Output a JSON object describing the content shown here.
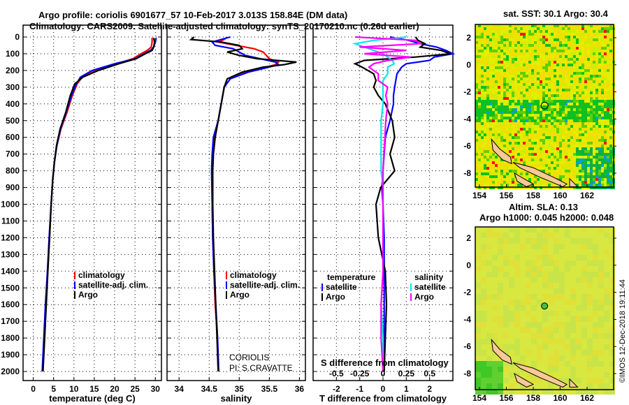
{
  "title_line1": "Argo profile: coriolis 6901677_57 10-Feb-2017 3.013S 158.84E (DM data)",
  "title_line2": "Climatology: CARS2009. Satellite-adjusted climatology: synTS_20170210.nc (0.26d earlier)",
  "credit": "CORIOLIS",
  "pi": "PI: S.CRAVATTE",
  "stamp": "©IMOS 12-Dec-2018 19:11:44",
  "colors": {
    "argo": "#000000",
    "clim": "#ff0000",
    "sat": "#0000ff",
    "sal_sat": "#00e8e8",
    "sal_argo": "#ff00ff"
  },
  "chart_data": [
    {
      "type": "line",
      "id": "temperature",
      "xlabel": "temperature (deg C)",
      "xticks": [
        0,
        5,
        10,
        15,
        20,
        25,
        30
      ],
      "xlim": [
        -2.5,
        31.5
      ],
      "ylim": [
        -75,
        2060
      ],
      "yticks": [
        0,
        100,
        200,
        300,
        400,
        500,
        600,
        700,
        800,
        900,
        1000,
        1100,
        1200,
        1300,
        1400,
        1500,
        1600,
        1700,
        1800,
        1900,
        2000
      ],
      "legend": [
        "climatology",
        "satellite-adj. clim.",
        "Argo"
      ],
      "depth": [
        5,
        30,
        60,
        80,
        100,
        130,
        160,
        200,
        240,
        280,
        350,
        450,
        550,
        650,
        750,
        850,
        1000,
        1200,
        1400,
        1600,
        1800,
        2000
      ],
      "series": [
        {
          "name": "climatology",
          "color": "clim",
          "values": [
            29.2,
            29.2,
            29.0,
            28.0,
            26.5,
            24.5,
            20.5,
            15.5,
            12.0,
            10.8,
            9.6,
            8.3,
            6.8,
            5.8,
            5.2,
            4.8,
            4.4,
            4.0,
            3.5,
            3.1,
            2.7,
            2.3
          ]
        },
        {
          "name": "satellite-adj. clim.",
          "color": "sat",
          "values": [
            30.2,
            30.0,
            29.6,
            28.8,
            27.3,
            25.0,
            20.0,
            14.5,
            11.6,
            10.6,
            9.4,
            8.1,
            6.7,
            5.8,
            5.2,
            4.8,
            4.4,
            3.9,
            3.5,
            3.0,
            2.6,
            2.2
          ]
        },
        {
          "name": "Argo",
          "color": "argo",
          "values": [
            29.6,
            29.8,
            29.6,
            29.2,
            27.5,
            25.3,
            21.0,
            16.0,
            12.2,
            10.2,
            9.1,
            8.0,
            6.6,
            5.7,
            5.2,
            4.8,
            4.4,
            4.0,
            3.6,
            3.2,
            2.8,
            2.4
          ]
        }
      ]
    },
    {
      "type": "line",
      "id": "salinity",
      "xlabel": "salinity",
      "xticks": [
        "34",
        "34.5",
        "35",
        "35.5",
        "36"
      ],
      "xlim": [
        33.8,
        36.1
      ],
      "legend": [
        "climatology",
        "satellite-adj. clim.",
        "Argo"
      ],
      "depth": [
        0,
        15,
        30,
        50,
        70,
        90,
        110,
        130,
        150,
        165,
        180,
        210,
        250,
        300,
        400,
        500,
        600,
        700,
        800,
        1000,
        1200,
        1400,
        1600,
        1800,
        2000
      ],
      "series": [
        {
          "name": "climatology",
          "color": "clim",
          "values": [
            34.8,
            34.75,
            34.65,
            34.95,
            35.25,
            35.4,
            35.45,
            35.5,
            35.65,
            35.6,
            35.45,
            35.1,
            34.85,
            34.75,
            34.7,
            34.65,
            34.58,
            34.56,
            34.55,
            34.55,
            34.56,
            34.58,
            34.6,
            34.64,
            34.65
          ]
        },
        {
          "name": "satellite-adj. clim.",
          "color": "sat",
          "values": [
            34.85,
            34.7,
            34.55,
            34.6,
            34.9,
            35.0,
            35.1,
            35.35,
            35.6,
            35.65,
            35.5,
            35.15,
            34.85,
            34.75,
            34.7,
            34.65,
            34.57,
            34.55,
            34.54,
            34.55,
            34.56,
            34.58,
            34.61,
            34.64,
            34.66
          ]
        },
        {
          "name": "Argo",
          "color": "argo",
          "values": [
            34.25,
            34.2,
            34.7,
            35.0,
            35.05,
            34.8,
            35.0,
            35.3,
            35.95,
            35.75,
            35.4,
            35.05,
            34.8,
            34.75,
            34.7,
            34.65,
            34.6,
            34.57,
            34.56,
            34.56,
            34.57,
            34.59,
            34.61,
            34.63,
            34.65
          ]
        }
      ]
    },
    {
      "type": "line",
      "id": "differences",
      "xlabel": "T difference from climatology",
      "xticks": [
        "-2",
        "-1",
        "0",
        "1",
        "2"
      ],
      "xlim": [
        -3.0,
        3.0
      ],
      "s_axis_label": "S difference from climatology",
      "s_ticks": [
        "-0.5",
        "-0.25",
        "0",
        "0.25",
        "0.5"
      ],
      "s_lim": [
        -0.75,
        0.75
      ],
      "legend": {
        "temperature_title": "temperature",
        "temperature_items": [
          "satellite",
          "Argo"
        ],
        "salinity_title": "salinity",
        "salinity_items": [
          "satellite",
          "Argo"
        ]
      },
      "depth": [
        0,
        20,
        40,
        60,
        80,
        100,
        120,
        140,
        160,
        180,
        220,
        260,
        300,
        350,
        400,
        500,
        600,
        700,
        800,
        900,
        1000,
        1200,
        1400,
        1600,
        1800,
        2000
      ],
      "series": [
        {
          "name": "T satellite",
          "axis": "T",
          "color": "sat",
          "values": [
            0.3,
            1.1,
            1.6,
            2.3,
            2.7,
            3.0,
            2.2,
            2.0,
            1.0,
            0.8,
            0.6,
            0.55,
            0.5,
            0.45,
            0.45,
            0.3,
            0.1,
            0.05,
            0.0,
            -0.05,
            0.0,
            0.05,
            0.05,
            0.05,
            0.05,
            0.05
          ]
        },
        {
          "name": "T Argo",
          "axis": "T",
          "color": "argo",
          "values": [
            1.4,
            1.5,
            1.8,
            1.6,
            2.5,
            2.9,
            1.4,
            -0.8,
            -1.2,
            -0.9,
            -0.4,
            -0.3,
            -0.4,
            -0.2,
            0.1,
            0.4,
            0.5,
            0.3,
            0.5,
            -0.1,
            -0.3,
            -0.2,
            0.1,
            0.15,
            0.1,
            0.05
          ]
        },
        {
          "name": "S satellite",
          "axis": "S",
          "color": "sal_sat",
          "values": [
            0.25,
            -0.1,
            -0.3,
            -0.2,
            -0.1,
            0.0,
            0.05,
            0.1,
            0.12,
            0.05,
            0.05,
            0.0,
            0.0,
            0.0,
            0.0,
            -0.02,
            -0.02,
            -0.02,
            -0.02,
            0.0,
            0.0,
            0.0,
            0.0,
            -0.02,
            0.0,
            0.0
          ]
        },
        {
          "name": "S Argo",
          "axis": "S",
          "color": "sal_argo",
          "values": [
            -0.3,
            0.35,
            0.4,
            -0.25,
            0.25,
            -0.2,
            0.3,
            0.05,
            -0.1,
            -0.15,
            -0.05,
            -0.05,
            0.05,
            0.03,
            0.05,
            0.03,
            0.02,
            0.01,
            0.0,
            0.0,
            0.0,
            0.0,
            0.0,
            -0.02,
            -0.02,
            0.0
          ]
        }
      ]
    }
  ],
  "maps": [
    {
      "id": "sst",
      "title": "sat. SST: 30.1 Argo: 30.4",
      "xticks": [
        "154",
        "156",
        "158",
        "160",
        "162"
      ],
      "yticks": [
        "2",
        "0",
        "-2",
        "-4",
        "-6",
        "-8"
      ],
      "float_lon": 158.84,
      "float_lat": -3.013
    },
    {
      "id": "sla",
      "title_line1": "Altim. SLA: 0.13",
      "title_line2": "Argo h1000: 0.045 h2000: 0.048",
      "xticks": [
        "154",
        "156",
        "158",
        "160",
        "162"
      ],
      "yticks": [
        "2",
        "0",
        "-2",
        "-4",
        "-6",
        "-8"
      ],
      "float_lon": 158.84,
      "float_lat": -3.013
    }
  ]
}
